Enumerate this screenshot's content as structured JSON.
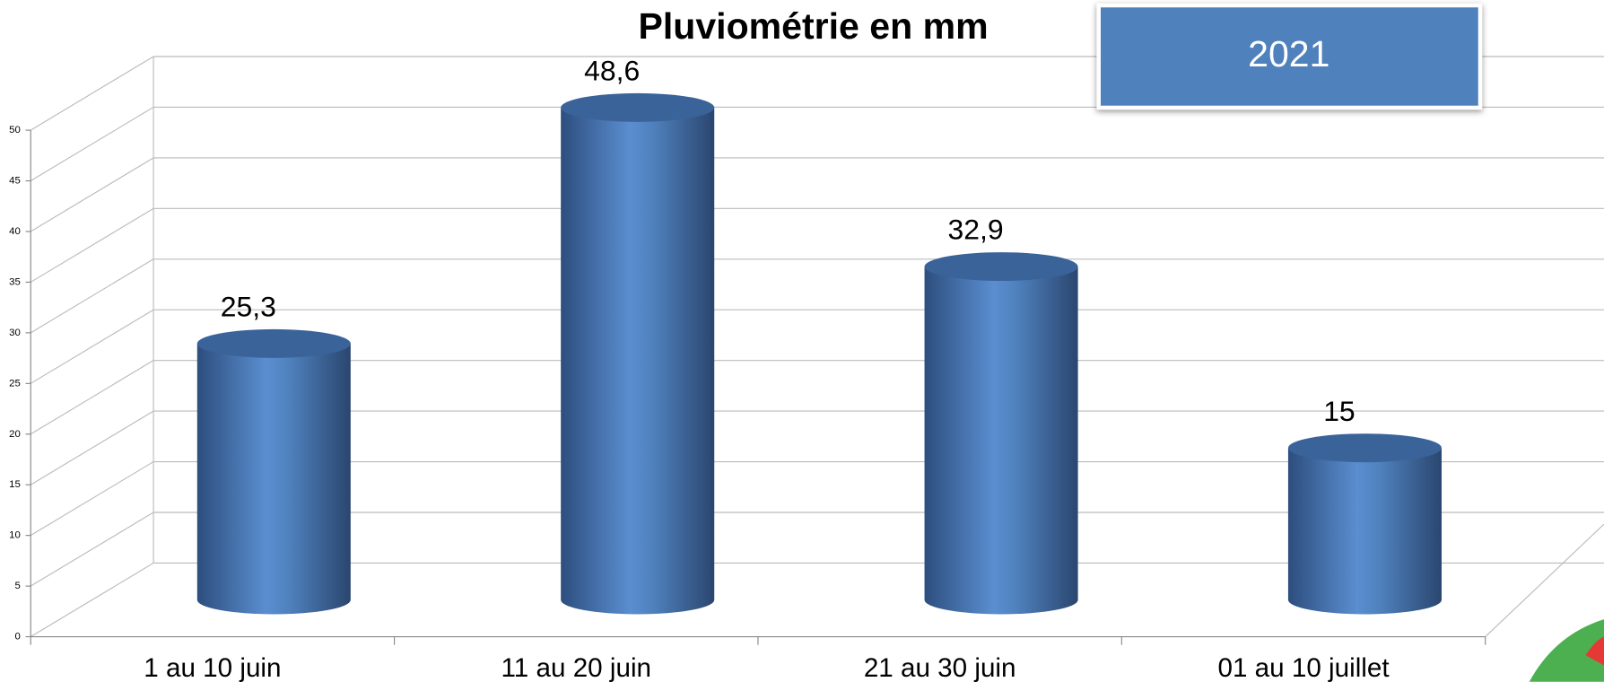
{
  "chart_data": {
    "type": "bar",
    "title": "Pluviométrie en mm",
    "categories": [
      "1 au 10 juin",
      "11 au 20 juin",
      "21 au 30 juin",
      "01 au 10 juillet"
    ],
    "series": [
      {
        "name": "2021",
        "color": "#4f81bd",
        "values": [
          25.3,
          48.6,
          32.9,
          15
        ],
        "value_labels": [
          "25,3",
          "48,6",
          "32,9",
          "15"
        ]
      }
    ],
    "ylim": [
      0,
      50
    ],
    "yticks": [
      0,
      5,
      10,
      15,
      20,
      25,
      30,
      35,
      40,
      45,
      50
    ],
    "grid": true
  }
}
